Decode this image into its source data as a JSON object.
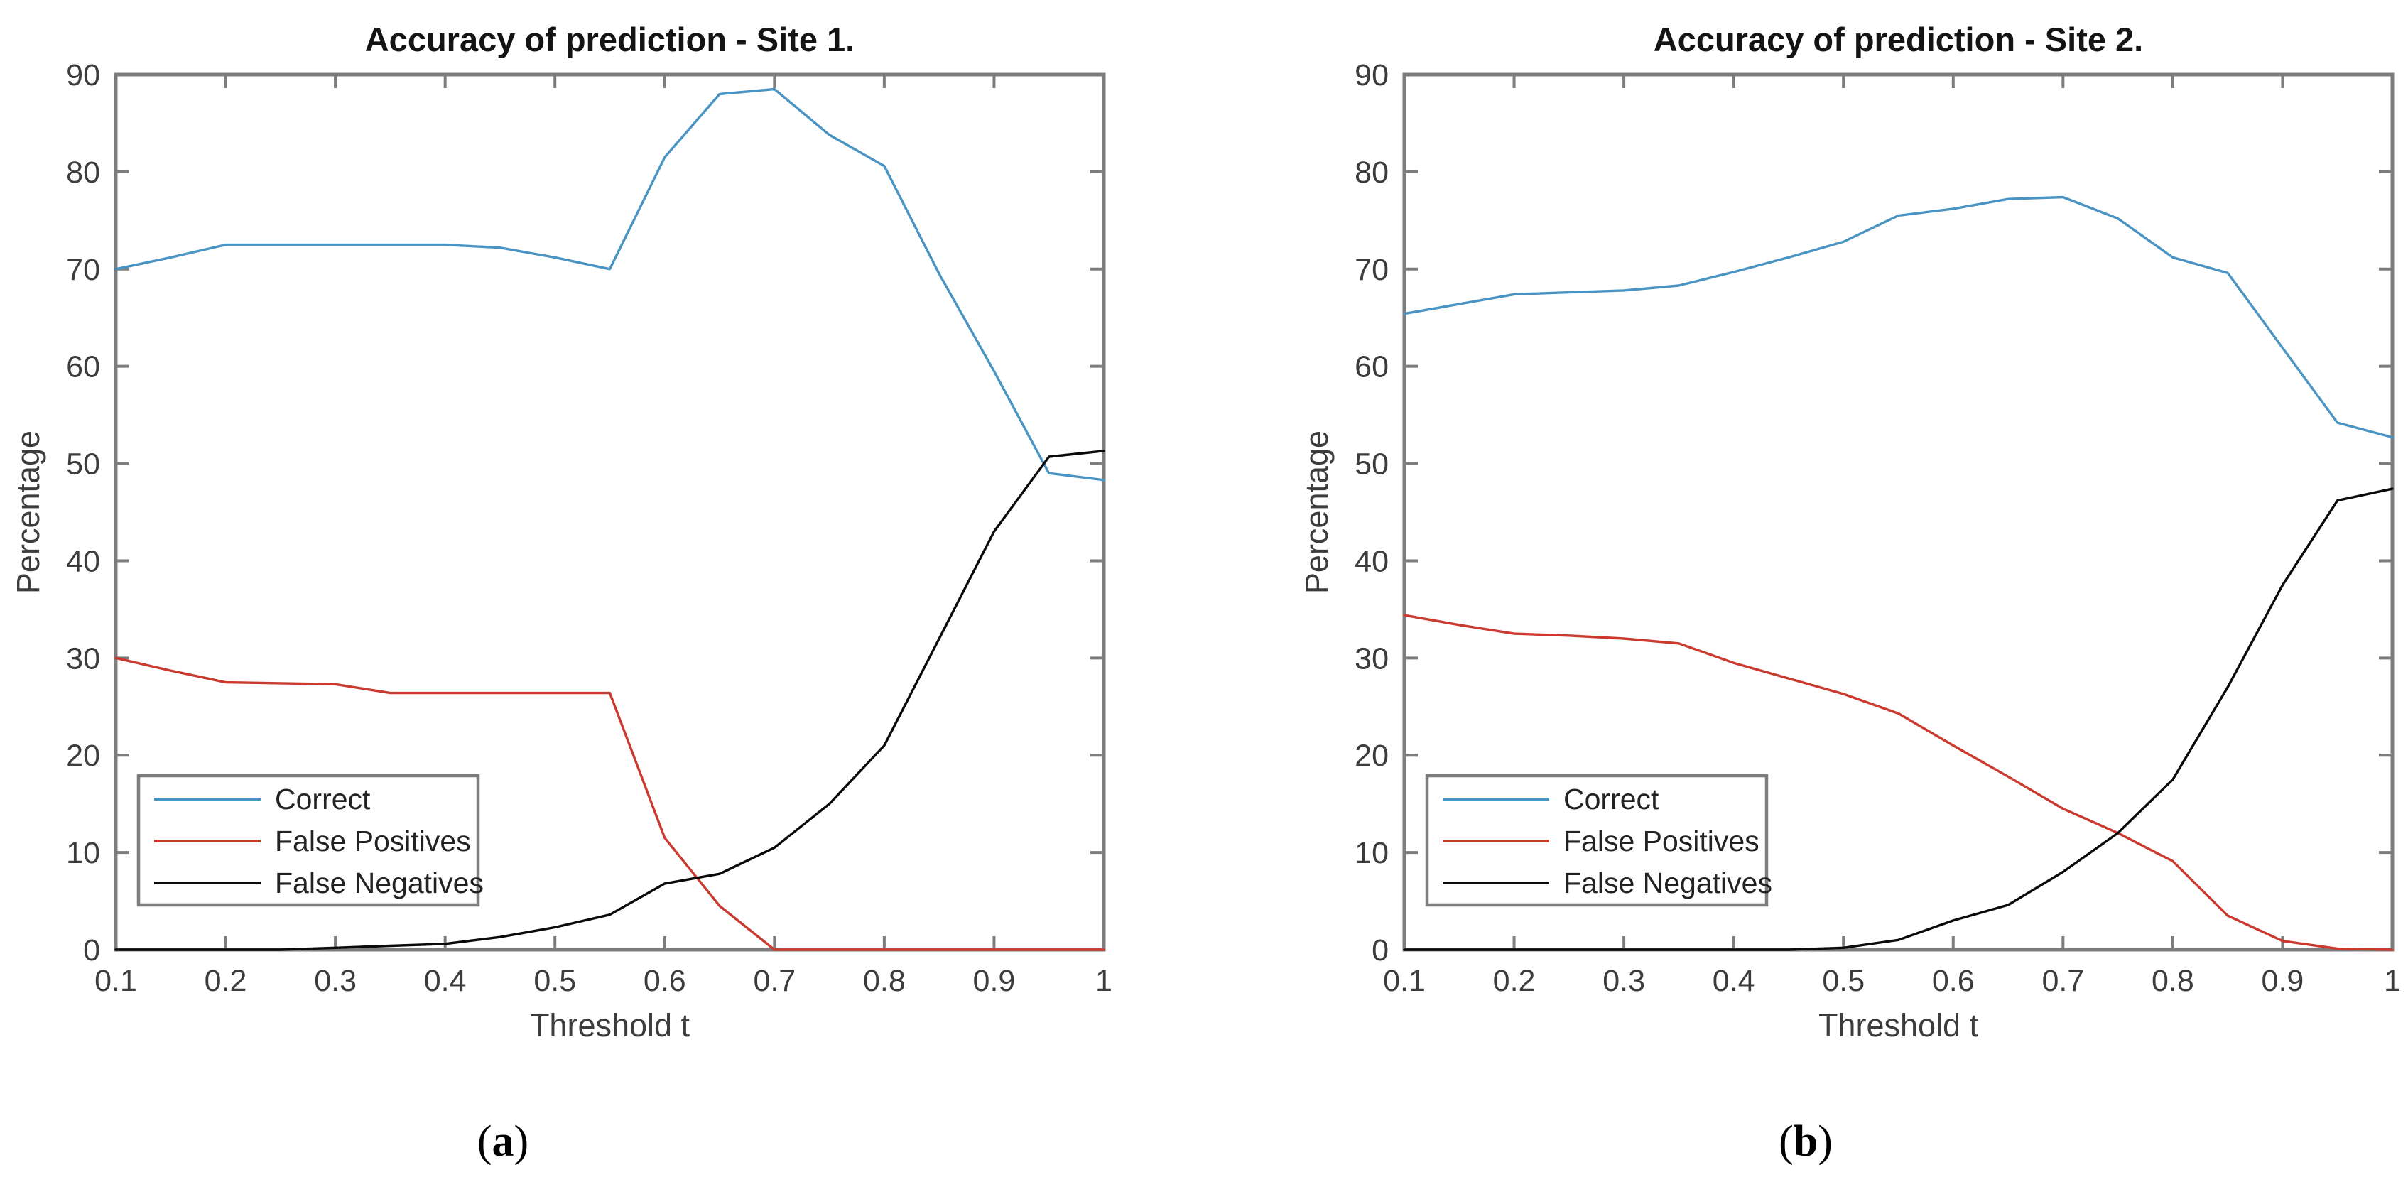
{
  "figure": {
    "background": "#ffffff",
    "captions": [
      {
        "open": "(",
        "letter": "a",
        "close": ")"
      },
      {
        "open": "(",
        "letter": "b",
        "close": ")"
      }
    ]
  },
  "style": {
    "axis_color": "#7d7d7d",
    "tick_label_color": "#3c3c3c",
    "title_color": "#141414",
    "legend_text_color": "#222222",
    "legend_border_color": "#7d7d7d",
    "plot_background": "#ffffff"
  },
  "chart_data": [
    {
      "type": "line",
      "title": "Accuracy of prediction - Site 1.",
      "xlabel": "Threshold t",
      "ylabel": "Percentage",
      "xlim": [
        0.1,
        1.0
      ],
      "ylim": [
        0,
        90
      ],
      "grid": false,
      "legend_position": "lower-left",
      "xtick_labels": [
        "0.1",
        "0.2",
        "0.3",
        "0.4",
        "0.5",
        "0.6",
        "0.7",
        "0.8",
        "0.9",
        "1"
      ],
      "xticks": [
        0.1,
        0.2,
        0.3,
        0.4,
        0.5,
        0.6,
        0.7,
        0.8,
        0.9,
        1.0
      ],
      "ytick_labels": [
        "0",
        "10",
        "20",
        "30",
        "40",
        "50",
        "60",
        "70",
        "80",
        "90"
      ],
      "yticks": [
        0,
        10,
        20,
        30,
        40,
        50,
        60,
        70,
        80,
        90
      ],
      "x": [
        0.1,
        0.15,
        0.2,
        0.25,
        0.3,
        0.35,
        0.4,
        0.45,
        0.5,
        0.55,
        0.6,
        0.65,
        0.7,
        0.75,
        0.8,
        0.85,
        0.9,
        0.95,
        1.0
      ],
      "series": [
        {
          "name": "Correct",
          "color": "#4a94c4",
          "values": [
            70,
            71.2,
            72.5,
            72.5,
            72.5,
            72.5,
            72.5,
            72.2,
            71.2,
            70,
            81.5,
            88,
            88.5,
            83.8,
            80.6,
            69.5,
            59.5,
            49,
            48.3
          ]
        },
        {
          "name": "False Positives",
          "color": "#cb3a2f",
          "values": [
            30,
            28.7,
            27.5,
            27.4,
            27.3,
            26.4,
            26.4,
            26.4,
            26.4,
            26.4,
            11.5,
            4.5,
            0,
            0,
            0,
            0,
            0,
            0,
            0
          ]
        },
        {
          "name": "False Negatives",
          "color": "#0a0a0a",
          "values": [
            0,
            0,
            0,
            0,
            0.2,
            0.4,
            0.6,
            1.3,
            2.3,
            3.6,
            6.8,
            7.8,
            10.5,
            15,
            21,
            32,
            43,
            50.7,
            51.3
          ]
        }
      ]
    },
    {
      "type": "line",
      "title": "Accuracy of prediction - Site 2.",
      "xlabel": "Threshold t",
      "ylabel": "Percentage",
      "xlim": [
        0.1,
        1.0
      ],
      "ylim": [
        0,
        90
      ],
      "grid": false,
      "legend_position": "lower-left",
      "xtick_labels": [
        "0.1",
        "0.2",
        "0.3",
        "0.4",
        "0.5",
        "0.6",
        "0.7",
        "0.8",
        "0.9",
        "1"
      ],
      "xticks": [
        0.1,
        0.2,
        0.3,
        0.4,
        0.5,
        0.6,
        0.7,
        0.8,
        0.9,
        1.0
      ],
      "ytick_labels": [
        "0",
        "10",
        "20",
        "30",
        "40",
        "50",
        "60",
        "70",
        "80",
        "90"
      ],
      "yticks": [
        0,
        10,
        20,
        30,
        40,
        50,
        60,
        70,
        80,
        90
      ],
      "x": [
        0.1,
        0.15,
        0.2,
        0.25,
        0.3,
        0.35,
        0.4,
        0.45,
        0.5,
        0.55,
        0.6,
        0.65,
        0.7,
        0.75,
        0.8,
        0.85,
        0.9,
        0.95,
        1.0
      ],
      "series": [
        {
          "name": "Correct",
          "color": "#4a94c4",
          "values": [
            65.4,
            66.4,
            67.4,
            67.6,
            67.8,
            68.3,
            69.7,
            71.2,
            72.8,
            75.5,
            76.2,
            77.2,
            77.4,
            75.2,
            71.2,
            69.6,
            61.9,
            54.2,
            52.7
          ]
        },
        {
          "name": "False Positives",
          "color": "#cb3a2f",
          "values": [
            34.4,
            33.4,
            32.5,
            32.3,
            32.0,
            31.5,
            29.5,
            27.9,
            26.3,
            24.3,
            21.0,
            17.8,
            14.5,
            12.0,
            9.1,
            3.5,
            0.9,
            0.1,
            0
          ]
        },
        {
          "name": "False Negatives",
          "color": "#0a0a0a",
          "values": [
            0,
            0,
            0,
            0,
            0,
            0,
            0,
            0,
            0.2,
            1.0,
            3.0,
            4.6,
            8.0,
            12.0,
            17.5,
            27.0,
            37.5,
            46.2,
            47.4
          ]
        }
      ]
    }
  ]
}
